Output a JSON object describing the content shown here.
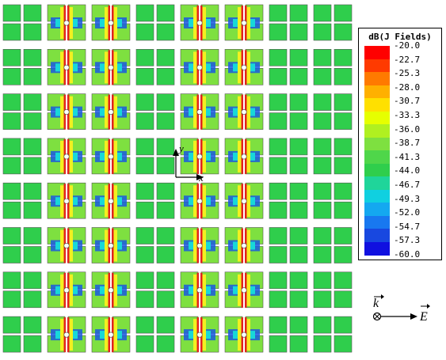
{
  "figure": {
    "grid_rows": 8,
    "grid_cols": 8,
    "hot_columns": [
      1,
      2,
      4,
      5
    ]
  },
  "axis": {
    "y_label": "y",
    "x_label": "x"
  },
  "legend": {
    "title": "dB(J Fields)",
    "ticks": [
      "-20.0",
      "-22.7",
      "-25.3",
      "-28.0",
      "-30.7",
      "-33.3",
      "-36.0",
      "-38.7",
      "-41.3",
      "-44.0",
      "-46.7",
      "-49.3",
      "-52.0",
      "-54.7",
      "-57.3",
      "-60.0"
    ],
    "colors": [
      "#ff0000",
      "#ff3a00",
      "#ff7a00",
      "#ffb000",
      "#ffe000",
      "#e6ff00",
      "#b0f020",
      "#7ee040",
      "#4fd64a",
      "#2fce4c",
      "#1fd59a",
      "#10d0e0",
      "#14a8f0",
      "#1878f0",
      "#1848e0",
      "#1010e0"
    ]
  },
  "wave": {
    "k_label": "k",
    "e_label": "E"
  },
  "colors": {
    "cell_green": "#2fce4c",
    "cell_mid": "#7ee040",
    "cell_hot": "#e0231f",
    "cell_yellow": "#f2f020",
    "cell_cyan": "#18d8d8",
    "cell_blue": "#1a58e0"
  }
}
